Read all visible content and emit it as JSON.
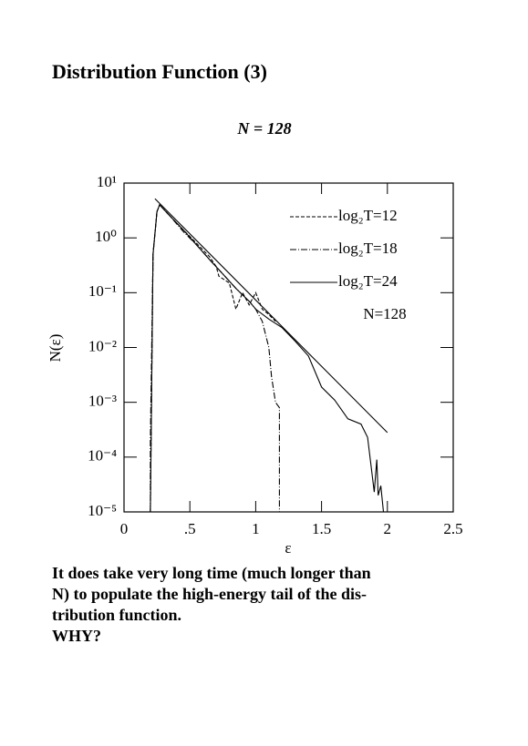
{
  "heading": "Distribution Function (3)",
  "subtitle": "N = 128",
  "chart_data": {
    "type": "line",
    "log_y": true,
    "xlabel": "ε",
    "ylabel": "N(ε)",
    "annotation": "N=128",
    "xlim": [
      0,
      2.5
    ],
    "ylim": [
      1e-05,
      10
    ],
    "xticks": [
      0,
      {
        "value": 0.5,
        "label": ".5"
      },
      1,
      1.5,
      2,
      2.5
    ],
    "yticks": [
      {
        "value": 1e-05,
        "label": "10⁻⁵"
      },
      {
        "value": 0.0001,
        "label": "10⁻⁴"
      },
      {
        "value": 0.001,
        "label": "10⁻³"
      },
      {
        "value": 0.01,
        "label": "10⁻²"
      },
      {
        "value": 0.1,
        "label": "10⁻¹"
      },
      {
        "value": 1,
        "label": "10⁰"
      },
      {
        "value": 10,
        "label": "10¹"
      }
    ],
    "series": [
      {
        "name": "log₂T=12",
        "color": "#000000",
        "dash": "4,2",
        "x": [
          0.2,
          0.22,
          0.25,
          0.27,
          0.35,
          0.45,
          0.55,
          0.65,
          0.7,
          0.72,
          0.8,
          0.85,
          0.9,
          0.95,
          1.0,
          1.05,
          1.1,
          1.15
        ],
        "values": [
          1e-05,
          0.5,
          3,
          4,
          2.5,
          1.4,
          0.8,
          0.45,
          0.3,
          0.2,
          0.15,
          0.05,
          0.1,
          0.06,
          0.1,
          0.05,
          0.04,
          0.03
        ]
      },
      {
        "name": "log₂T=18",
        "color": "#000000",
        "dash": "7,2,1,2",
        "x": [
          0.2,
          0.2,
          0.22,
          0.25,
          0.27,
          0.35,
          0.45,
          0.55,
          0.65,
          0.75,
          0.85,
          0.95,
          1.0,
          1.05,
          1.1,
          1.12,
          1.15,
          1.18,
          1.18
        ],
        "values": [
          1e-05,
          0.0002,
          0.5,
          3,
          4,
          2.5,
          1.3,
          0.75,
          0.4,
          0.22,
          0.12,
          0.07,
          0.05,
          0.03,
          0.01,
          0.003,
          0.001,
          0.0008,
          1e-05
        ]
      },
      {
        "name": "log₂T=24",
        "color": "#000000",
        "dash": "",
        "x": [
          0.2,
          0.22,
          0.25,
          0.27,
          0.35,
          0.45,
          0.55,
          0.65,
          0.75,
          0.85,
          0.95,
          1.0,
          1.1,
          1.2,
          1.3,
          1.4,
          1.5,
          1.6,
          1.7,
          1.8,
          1.85,
          1.9,
          1.92,
          1.93,
          1.95,
          1.97
        ],
        "values": [
          1e-05,
          0.5,
          3,
          4,
          2.5,
          1.4,
          0.75,
          0.4,
          0.22,
          0.12,
          0.07,
          0.05,
          0.033,
          0.023,
          0.013,
          0.007,
          0.0019,
          0.0011,
          0.0005,
          0.0004,
          0.00023,
          2.3e-05,
          9e-05,
          2e-05,
          3e-05,
          1e-05
        ]
      }
    ],
    "fit": {
      "color": "#000000",
      "x": [
        0.235,
        2.0
      ],
      "values": [
        5.2,
        0.00028
      ]
    }
  },
  "text": [
    "It does take very long time (much longer than",
    "N) to populate the high-energy tail of the dis-",
    "tribution function.",
    "WHY?"
  ]
}
